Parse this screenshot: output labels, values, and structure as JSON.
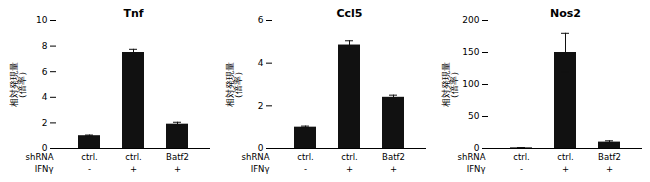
{
  "chart_data": [
    {
      "type": "bar",
      "title": "Tnf",
      "ylabel": "相対発現量\n（倍率）",
      "categories": [
        "ctrl.",
        "ctrl.",
        "Batf2"
      ],
      "ifng": [
        "-",
        "+",
        "+"
      ],
      "row_labels": [
        "shRNA",
        "IFNγ"
      ],
      "values": [
        1.0,
        7.5,
        1.9
      ],
      "errors": [
        0.05,
        0.25,
        0.15
      ],
      "color": "#111111",
      "ylim": [
        0,
        10
      ],
      "yticks": [
        0,
        2,
        4,
        6,
        8,
        10
      ],
      "grid": false
    },
    {
      "type": "bar",
      "title": "Ccl5",
      "ylabel": "相対発現量\n（倍率）",
      "categories": [
        "ctrl.",
        "ctrl.",
        "Batf2"
      ],
      "ifng": [
        "-",
        "+",
        "+"
      ],
      "row_labels": [
        "shRNA",
        "IFNγ"
      ],
      "values": [
        1.0,
        4.85,
        2.4
      ],
      "errors": [
        0.05,
        0.2,
        0.1
      ],
      "color": "#111111",
      "ylim": [
        0,
        6
      ],
      "yticks": [
        0,
        2,
        4,
        6
      ],
      "grid": false
    },
    {
      "type": "bar",
      "title": "Nos2",
      "ylabel": "相対発現量\n（倍率）",
      "categories": [
        "ctrl.",
        "ctrl.",
        "Batf2"
      ],
      "ifng": [
        "-",
        "+",
        "+"
      ],
      "row_labels": [
        "shRNA",
        "IFNγ"
      ],
      "values": [
        1.0,
        150.0,
        10.0
      ],
      "errors": [
        0.5,
        30.0,
        2.0
      ],
      "color": "#111111",
      "ylim": [
        0,
        200
      ],
      "yticks": [
        0,
        50,
        100,
        150,
        200
      ],
      "grid": false
    }
  ]
}
